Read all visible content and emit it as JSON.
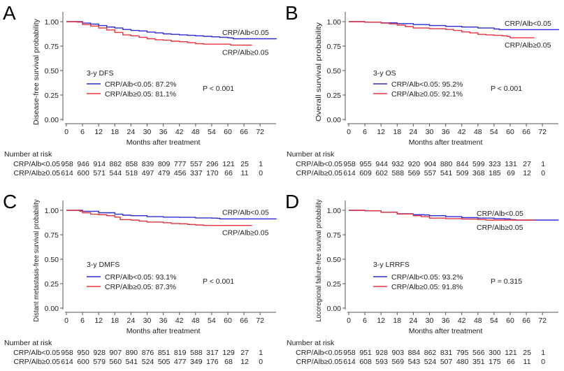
{
  "figure": {
    "colors": {
      "low": "#2b2bd6",
      "high": "#e8323c"
    },
    "xlabel": "Months after treatment",
    "risk_header": "Number at risk"
  },
  "chart_data": [
    {
      "type": "line",
      "panel_label": "A",
      "title": "",
      "xlabel": "Months after treatment",
      "ylabel": "Disease-free survival probability",
      "xlim": [
        0,
        78
      ],
      "ylim": [
        0,
        1
      ],
      "xticks": [
        0,
        6,
        12,
        18,
        24,
        30,
        36,
        42,
        48,
        54,
        60,
        66,
        72
      ],
      "yticks": [
        "0.00",
        "0.25",
        "0.50",
        "0.75",
        "1.00"
      ],
      "legend_title": "3-y DFS",
      "p_value": "P < 0.001",
      "curve_labels": [
        "CRP/Alb<0.05",
        "CRP/Alb≥0.05"
      ],
      "series": [
        {
          "name": "CRP/Alb<0.05",
          "legend": "CRP/Alb<0.05: 87.2%",
          "color_key": "low",
          "x": [
            0,
            3,
            6,
            9,
            12,
            15,
            18,
            21,
            24,
            27,
            30,
            33,
            36,
            39,
            42,
            45,
            48,
            51,
            54,
            57,
            60,
            61,
            62,
            66,
            72,
            78
          ],
          "y": [
            1.0,
            1.0,
            0.985,
            0.975,
            0.96,
            0.945,
            0.935,
            0.92,
            0.91,
            0.905,
            0.893,
            0.885,
            0.875,
            0.87,
            0.865,
            0.86,
            0.855,
            0.85,
            0.845,
            0.84,
            0.835,
            0.833,
            0.825,
            0.825,
            0.825,
            0.822
          ],
          "risk": [
            958,
            946,
            914,
            882,
            858,
            839,
            809,
            777,
            557,
            296,
            121,
            25,
            1
          ]
        },
        {
          "name": "CRP/Alb≥0.05",
          "legend": "CRP/Alb≥0.05: 81.1%",
          "color_key": "high",
          "x": [
            0,
            3,
            4,
            6,
            9,
            12,
            15,
            18,
            21,
            24,
            27,
            30,
            33,
            36,
            39,
            42,
            45,
            48,
            51,
            54,
            57,
            60,
            61,
            66,
            69
          ],
          "y": [
            1.0,
            1.0,
            0.995,
            0.97,
            0.955,
            0.935,
            0.915,
            0.89,
            0.865,
            0.855,
            0.84,
            0.825,
            0.815,
            0.81,
            0.8,
            0.795,
            0.785,
            0.775,
            0.77,
            0.77,
            0.77,
            0.77,
            0.76,
            0.76,
            0.76
          ],
          "risk": [
            614,
            600,
            571,
            544,
            518,
            497,
            479,
            456,
            337,
            170,
            66,
            11,
            0
          ]
        }
      ]
    },
    {
      "type": "line",
      "panel_label": "B",
      "title": "",
      "xlabel": "Months after treatment",
      "ylabel": "Overall survival probability",
      "xlim": [
        0,
        78
      ],
      "ylim": [
        0,
        1
      ],
      "xticks": [
        0,
        6,
        12,
        18,
        24,
        30,
        36,
        42,
        48,
        54,
        60,
        66,
        72
      ],
      "yticks": [
        "0.00",
        "0.25",
        "0.50",
        "0.75",
        "1.00"
      ],
      "legend_title": "3-y OS",
      "p_value": "P < 0.001",
      "curve_labels": [
        "CRP/Alb<0.05",
        "CRP/Alb≥0.05"
      ],
      "series": [
        {
          "name": "CRP/Alb<0.05",
          "legend": "CRP/Alb<0.05: 95.2%",
          "color_key": "low",
          "x": [
            0,
            6,
            12,
            18,
            24,
            30,
            36,
            42,
            48,
            54,
            56,
            60,
            66,
            72,
            78
          ],
          "y": [
            1.0,
            0.995,
            0.988,
            0.98,
            0.97,
            0.96,
            0.952,
            0.945,
            0.935,
            0.925,
            0.918,
            0.918,
            0.918,
            0.918,
            0.915
          ],
          "risk": [
            958,
            955,
            944,
            932,
            920,
            904,
            880,
            844,
            599,
            323,
            131,
            27,
            1
          ]
        },
        {
          "name": "CRP/Alb≥0.05",
          "legend": "CRP/Alb≥0.05: 92.1%",
          "color_key": "high",
          "x": [
            0,
            6,
            12,
            15,
            18,
            21,
            24,
            30,
            36,
            39,
            42,
            45,
            48,
            51,
            54,
            57,
            59,
            60,
            66,
            69
          ],
          "y": [
            1.0,
            0.995,
            0.985,
            0.978,
            0.965,
            0.95,
            0.935,
            0.928,
            0.92,
            0.91,
            0.895,
            0.885,
            0.87,
            0.865,
            0.86,
            0.855,
            0.848,
            0.835,
            0.835,
            0.835
          ],
          "risk": [
            614,
            609,
            602,
            588,
            569,
            557,
            541,
            509,
            368,
            185,
            69,
            12,
            0
          ]
        }
      ]
    },
    {
      "type": "line",
      "panel_label": "C",
      "title": "",
      "xlabel": "Months after treatment",
      "ylabel": "Distant metastasis-free survival probability",
      "xlim": [
        0,
        78
      ],
      "ylim": [
        0,
        1
      ],
      "xticks": [
        0,
        6,
        12,
        18,
        24,
        30,
        36,
        42,
        48,
        54,
        60,
        66,
        72
      ],
      "yticks": [
        "0.00",
        "0.25",
        "0.50",
        "0.75",
        "1.00"
      ],
      "legend_title": "3-y DMFS",
      "p_value": "P < 0.001",
      "curve_labels": [
        "CRP/Alb<0.05",
        "CRP/Alb≥0.05"
      ],
      "series": [
        {
          "name": "CRP/Alb<0.05",
          "legend": "CRP/Alb<0.05: 93.1%",
          "color_key": "low",
          "x": [
            0,
            3,
            6,
            12,
            18,
            21,
            24,
            30,
            36,
            42,
            48,
            54,
            56,
            57,
            60,
            66,
            72,
            78
          ],
          "y": [
            1.0,
            1.0,
            0.99,
            0.975,
            0.96,
            0.95,
            0.945,
            0.935,
            0.93,
            0.928,
            0.922,
            0.92,
            0.918,
            0.912,
            0.912,
            0.912,
            0.912,
            0.91
          ],
          "risk": [
            958,
            950,
            928,
            907,
            890,
            876,
            851,
            819,
            588,
            317,
            129,
            27,
            1
          ]
        },
        {
          "name": "CRP/Alb≥0.05",
          "legend": "CRP/Alb≥0.05: 87.3%",
          "color_key": "high",
          "x": [
            0,
            3,
            5,
            6,
            9,
            12,
            15,
            18,
            20,
            24,
            27,
            30,
            36,
            39,
            42,
            45,
            48,
            51,
            54,
            60,
            66,
            69
          ],
          "y": [
            1.0,
            1.0,
            0.99,
            0.975,
            0.96,
            0.955,
            0.945,
            0.93,
            0.905,
            0.9,
            0.89,
            0.88,
            0.873,
            0.865,
            0.862,
            0.855,
            0.85,
            0.845,
            0.845,
            0.845,
            0.845,
            0.845
          ],
          "risk": [
            614,
            600,
            579,
            560,
            541,
            524,
            505,
            477,
            349,
            176,
            68,
            12,
            0
          ]
        }
      ]
    },
    {
      "type": "line",
      "panel_label": "D",
      "title": "",
      "xlabel": "Months after treatment",
      "ylabel": "Locoregional failure-free survival probability",
      "xlim": [
        0,
        78
      ],
      "ylim": [
        0,
        1
      ],
      "xticks": [
        0,
        6,
        12,
        18,
        24,
        30,
        36,
        42,
        48,
        54,
        60,
        66,
        72
      ],
      "yticks": [
        "0.00",
        "0.25",
        "0.50",
        "0.75",
        "1.00"
      ],
      "legend_title": "3-y LRRFS",
      "p_value": "P = 0.315",
      "curve_labels": [
        "CRP/Alb<0.05",
        "CRP/Alb≥0.05"
      ],
      "series": [
        {
          "name": "CRP/Alb<0.05",
          "legend": "CRP/Alb<0.05: 93.2%",
          "color_key": "low",
          "x": [
            0,
            6,
            12,
            18,
            24,
            28,
            30,
            36,
            42,
            48,
            54,
            58,
            60,
            61,
            62,
            66,
            72,
            78
          ],
          "y": [
            1.0,
            0.995,
            0.98,
            0.965,
            0.955,
            0.952,
            0.945,
            0.935,
            0.925,
            0.92,
            0.915,
            0.912,
            0.905,
            0.905,
            0.9,
            0.9,
            0.9,
            0.9
          ],
          "risk": [
            958,
            951,
            928,
            903,
            884,
            862,
            831,
            795,
            566,
            300,
            121,
            25,
            1
          ]
        },
        {
          "name": "CRP/Alb≥0.05",
          "legend": "CRP/Alb≥0.05: 91.8%",
          "color_key": "high",
          "x": [
            0,
            6,
            12,
            18,
            24,
            27,
            30,
            36,
            42,
            48,
            51,
            54,
            60,
            66,
            69
          ],
          "y": [
            1.0,
            0.995,
            0.98,
            0.962,
            0.945,
            0.935,
            0.92,
            0.915,
            0.91,
            0.905,
            0.9,
            0.9,
            0.9,
            0.9,
            0.9
          ],
          "risk": [
            614,
            608,
            593,
            569,
            543,
            524,
            507,
            480,
            351,
            175,
            66,
            11,
            0
          ]
        }
      ]
    }
  ]
}
